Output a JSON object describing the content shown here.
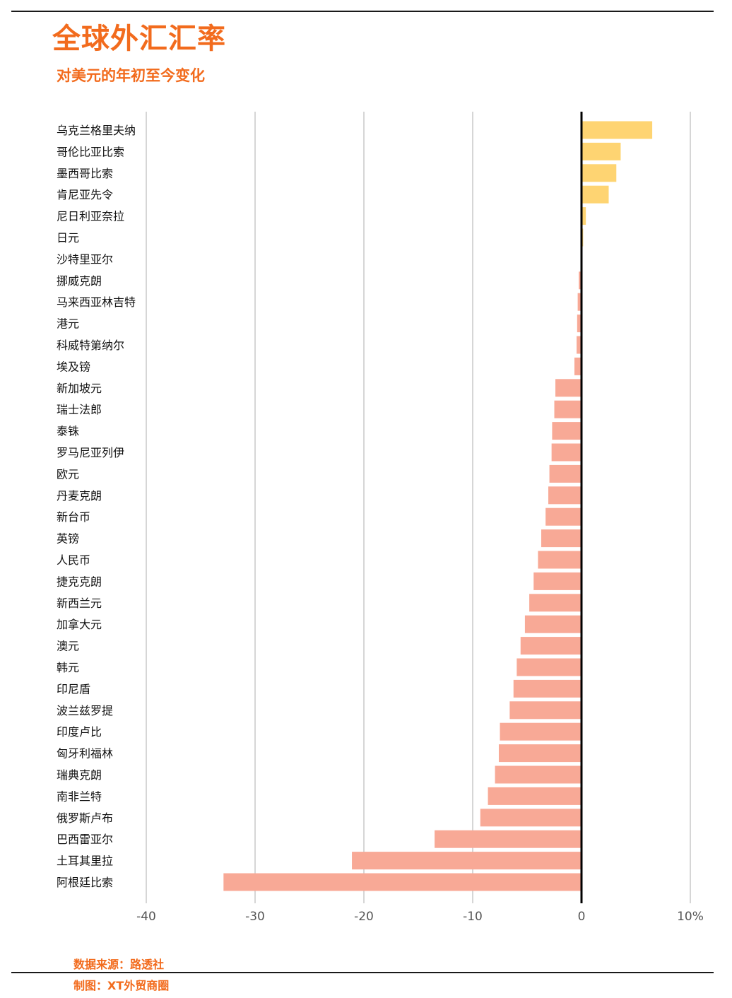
{
  "header": {
    "title": "全球外汇汇率",
    "subtitle": "对美元的年初至今变化"
  },
  "footer": {
    "source": "数据来源：路透社",
    "credit": "制图：XT外贸商圈"
  },
  "colors": {
    "positive": "#fed472",
    "negative": "#f8a996",
    "accent": "#f26b1d",
    "grid": "#bbbbbb",
    "zero_line": "#000000"
  },
  "chart_data": {
    "type": "bar",
    "orientation": "horizontal",
    "xlim": [
      -40,
      10
    ],
    "x_ticks": [
      -40,
      -30,
      -20,
      -10,
      0,
      10
    ],
    "x_tick_labels": [
      "-40",
      "-30",
      "-20",
      "-10",
      "0",
      "10%"
    ],
    "grid": true,
    "categories": [
      "乌克兰格里夫纳",
      "哥伦比亚比索",
      "墨西哥比索",
      "肯尼亚先令",
      "尼日利亚奈拉",
      "日元",
      "沙特里亚尔",
      "挪威克朗",
      "马来西亚林吉特",
      "港元",
      "科威特第纳尔",
      "埃及镑",
      "新加坡元",
      "瑞士法郎",
      "泰铢",
      "罗马尼亚列伊",
      "欧元",
      "丹麦克朗",
      "新台币",
      "英镑",
      "人民币",
      "捷克克朗",
      "新西兰元",
      "加拿大元",
      "澳元",
      "韩元",
      "印尼盾",
      "波兰兹罗提",
      "印度卢比",
      "匈牙利福林",
      "瑞典克朗",
      "南非兰特",
      "俄罗斯卢布",
      "巴西雷亚尔",
      "土耳其里拉",
      "阿根廷比索"
    ],
    "values": [
      6.5,
      3.6,
      3.2,
      2.5,
      0.4,
      0.15,
      0.0,
      -0.25,
      -0.35,
      -0.4,
      -0.45,
      -0.65,
      -2.4,
      -2.5,
      -2.7,
      -2.75,
      -2.95,
      -3.05,
      -3.3,
      -3.7,
      -4.0,
      -4.4,
      -4.8,
      -5.2,
      -5.6,
      -5.95,
      -6.25,
      -6.6,
      -7.5,
      -7.6,
      -7.95,
      -8.6,
      -9.3,
      -13.5,
      -21.1,
      -32.9
    ]
  }
}
